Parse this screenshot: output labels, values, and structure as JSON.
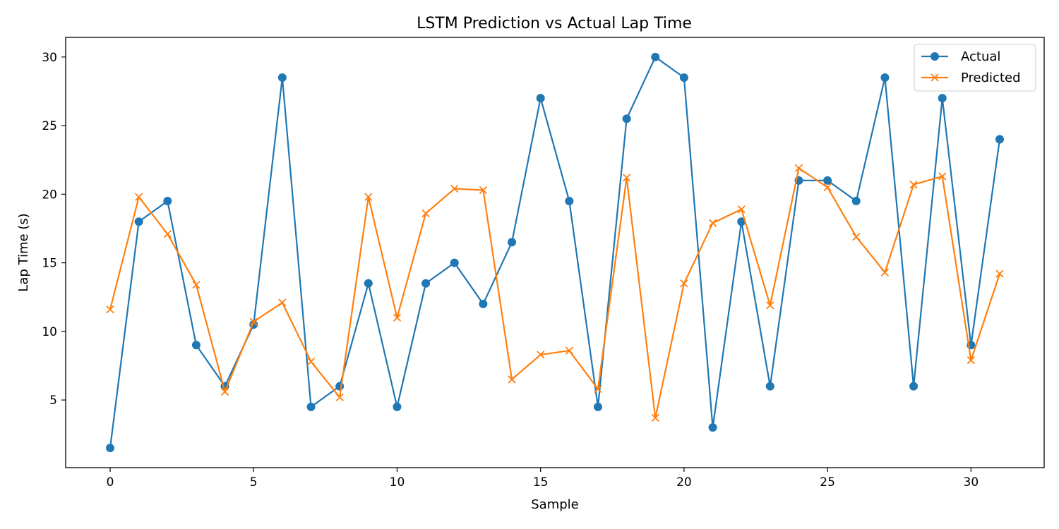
{
  "chart_data": {
    "type": "line",
    "title": "LSTM Prediction vs Actual Lap Time",
    "xlabel": "Sample",
    "ylabel": "Lap Time (s)",
    "xlim": [
      -1.55,
      32.55
    ],
    "ylim": [
      0.07,
      31.43
    ],
    "x_ticks": [
      0,
      5,
      10,
      15,
      20,
      25,
      30
    ],
    "y_ticks": [
      5,
      10,
      15,
      20,
      25,
      30
    ],
    "x_tick_labels": [
      "0",
      "5",
      "10",
      "15",
      "20",
      "25",
      "30"
    ],
    "y_tick_labels": [
      "5",
      "10",
      "15",
      "20",
      "25",
      "30"
    ],
    "x": [
      0,
      1,
      2,
      3,
      4,
      5,
      6,
      7,
      8,
      9,
      10,
      11,
      12,
      13,
      14,
      15,
      16,
      17,
      18,
      19,
      20,
      21,
      22,
      23,
      24,
      25,
      26,
      27,
      28,
      29,
      30,
      31
    ],
    "legend_position": "top-right",
    "grid": false,
    "series": [
      {
        "name": "Actual",
        "color": "#1f77b4",
        "marker": "circle",
        "values": [
          1.5,
          18,
          19.5,
          9,
          6,
          10.5,
          28.5,
          4.5,
          6,
          13.5,
          4.5,
          13.5,
          15,
          12,
          16.5,
          27,
          19.5,
          4.5,
          25.5,
          30,
          28.5,
          3,
          18,
          6,
          21,
          21,
          19.5,
          28.5,
          6,
          27,
          9,
          24
        ]
      },
      {
        "name": "Predicted",
        "color": "#ff7f0e",
        "marker": "x",
        "values": [
          11.6,
          19.8,
          17.1,
          13.4,
          5.6,
          10.7,
          12.1,
          7.8,
          5.2,
          19.8,
          11.0,
          18.6,
          20.4,
          20.3,
          6.5,
          8.3,
          8.6,
          5.8,
          21.2,
          3.7,
          13.5,
          17.9,
          18.9,
          11.9,
          21.9,
          20.5,
          16.9,
          14.3,
          20.7,
          21.3,
          7.9,
          14.2
        ]
      }
    ]
  }
}
